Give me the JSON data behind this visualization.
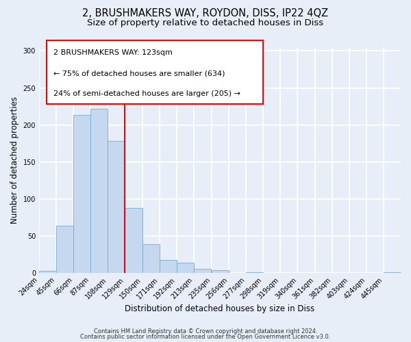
{
  "title": "2, BRUSHMAKERS WAY, ROYDON, DISS, IP22 4QZ",
  "subtitle": "Size of property relative to detached houses in Diss",
  "xlabel": "Distribution of detached houses by size in Diss",
  "ylabel": "Number of detached properties",
  "bar_color": "#c5d8f0",
  "bar_edge_color": "#7aaad0",
  "bg_color": "#e8eef8",
  "grid_color": "white",
  "bin_labels": [
    "24sqm",
    "45sqm",
    "66sqm",
    "87sqm",
    "108sqm",
    "129sqm",
    "150sqm",
    "171sqm",
    "192sqm",
    "213sqm",
    "235sqm",
    "256sqm",
    "277sqm",
    "298sqm",
    "319sqm",
    "340sqm",
    "361sqm",
    "382sqm",
    "403sqm",
    "424sqm",
    "445sqm"
  ],
  "bin_edges": [
    24,
    45,
    66,
    87,
    108,
    129,
    150,
    171,
    192,
    213,
    235,
    256,
    277,
    298,
    319,
    340,
    361,
    382,
    403,
    424,
    445
  ],
  "counts": [
    3,
    64,
    214,
    222,
    178,
    88,
    39,
    18,
    14,
    6,
    4,
    0,
    1,
    0,
    0,
    0,
    0,
    0,
    0,
    0,
    1
  ],
  "vline_x": 129,
  "vline_color": "red",
  "annotation_line1": "2 BRUSHMAKERS WAY: 123sqm",
  "annotation_line2": "← 75% of detached houses are smaller (634)",
  "annotation_line3": "24% of semi-detached houses are larger (205) →",
  "ylim": [
    0,
    305
  ],
  "yticks": [
    0,
    50,
    100,
    150,
    200,
    250,
    300
  ],
  "footer_line1": "Contains HM Land Registry data © Crown copyright and database right 2024.",
  "footer_line2": "Contains public sector information licensed under the Open Government Licence v3.0.",
  "title_fontsize": 10.5,
  "subtitle_fontsize": 9.5,
  "axis_label_fontsize": 8.5,
  "tick_fontsize": 7,
  "annotation_fontsize": 8,
  "footer_fontsize": 6
}
